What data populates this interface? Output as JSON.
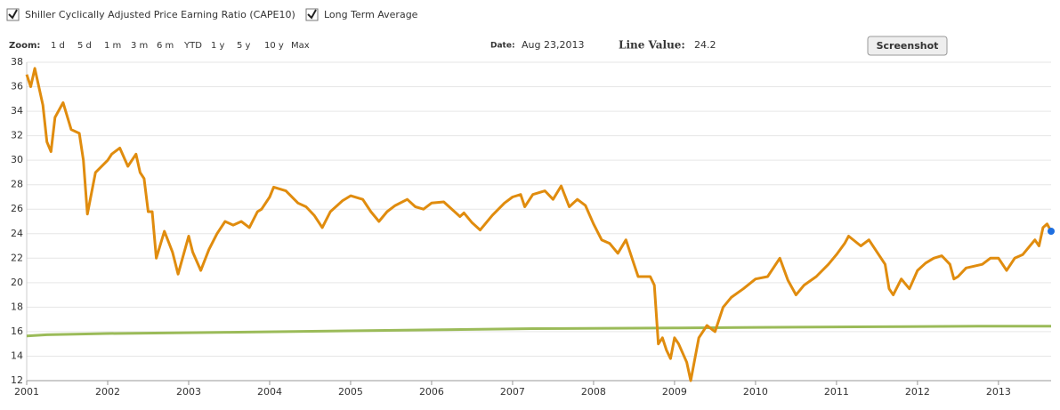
{
  "chart_data": {
    "type": "line",
    "zoom_label": "Zoom:",
    "zoom_options": [
      "1 d",
      "5 d",
      "1 m",
      "3 m",
      "6 m",
      "YTD",
      "1 y",
      "5 y",
      "10 y",
      "Max"
    ],
    "date_label": "Date:",
    "date": "Aug 23,2013",
    "line_value_label": "Line Value:",
    "line_value": 24.2,
    "screenshot_button": "Screenshot",
    "xlim": [
      2001,
      2013.65
    ],
    "xticks": [
      2001,
      2002,
      2003,
      2004,
      2005,
      2006,
      2007,
      2008,
      2009,
      2010,
      2011,
      2012,
      2013
    ],
    "ylim": [
      12,
      38
    ],
    "yticks": [
      12,
      14,
      16,
      18,
      20,
      22,
      24,
      26,
      28,
      30,
      32,
      34,
      36,
      38
    ],
    "grid": true,
    "series": [
      {
        "name": "Shiller Cyclically Adjusted Price Earning Ratio (CAPE10)",
        "color": "#e08c0e",
        "x": [
          2001.0,
          2001.05,
          2001.1,
          2001.2,
          2001.25,
          2001.3,
          2001.35,
          2001.45,
          2001.55,
          2001.65,
          2001.7,
          2001.75,
          2001.85,
          2002.0,
          2002.05,
          2002.15,
          2002.25,
          2002.35,
          2002.4,
          2002.45,
          2002.5,
          2002.55,
          2002.6,
          2002.7,
          2002.8,
          2002.87,
          2003.0,
          2003.05,
          2003.15,
          2003.25,
          2003.35,
          2003.45,
          2003.55,
          2003.65,
          2003.75,
          2003.85,
          2003.9,
          2004.0,
          2004.05,
          2004.2,
          2004.35,
          2004.45,
          2004.55,
          2004.65,
          2004.75,
          2004.9,
          2005.0,
          2005.15,
          2005.25,
          2005.35,
          2005.45,
          2005.55,
          2005.7,
          2005.8,
          2005.9,
          2006.0,
          2006.15,
          2006.35,
          2006.4,
          2006.5,
          2006.6,
          2006.75,
          2006.9,
          2007.0,
          2007.1,
          2007.15,
          2007.25,
          2007.4,
          2007.5,
          2007.6,
          2007.7,
          2007.8,
          2007.9,
          2008.0,
          2008.1,
          2008.2,
          2008.3,
          2008.4,
          2008.5,
          2008.55,
          2008.7,
          2008.75,
          2008.8,
          2008.85,
          2008.9,
          2008.95,
          2009.0,
          2009.05,
          2009.15,
          2009.2,
          2009.3,
          2009.4,
          2009.5,
          2009.6,
          2009.7,
          2009.85,
          2010.0,
          2010.15,
          2010.3,
          2010.4,
          2010.5,
          2010.6,
          2010.75,
          2010.9,
          2011.0,
          2011.1,
          2011.15,
          2011.3,
          2011.4,
          2011.5,
          2011.6,
          2011.65,
          2011.7,
          2011.8,
          2011.9,
          2012.0,
          2012.1,
          2012.2,
          2012.3,
          2012.4,
          2012.45,
          2012.5,
          2012.6,
          2012.8,
          2012.9,
          2013.0,
          2013.1,
          2013.2,
          2013.3,
          2013.45,
          2013.5,
          2013.55,
          2013.6,
          2013.65
        ],
        "values": [
          37,
          36,
          37.5,
          34.5,
          31.5,
          30.7,
          33.5,
          34.7,
          32.5,
          32.2,
          30,
          25.6,
          29,
          30,
          30.5,
          31,
          29.5,
          30.5,
          29,
          28.5,
          25.8,
          25.8,
          22,
          24.2,
          22.5,
          20.7,
          23.8,
          22.5,
          21,
          22.7,
          24,
          25,
          24.7,
          25,
          24.5,
          25.8,
          26,
          27,
          27.8,
          27.5,
          26.5,
          26.2,
          25.5,
          24.5,
          25.8,
          26.7,
          27.1,
          26.8,
          25.8,
          25,
          25.8,
          26.3,
          26.8,
          26.2,
          26,
          26.5,
          26.6,
          25.4,
          25.7,
          24.9,
          24.3,
          25.5,
          26.5,
          27,
          27.2,
          26.2,
          27.2,
          27.5,
          26.8,
          27.9,
          26.2,
          26.8,
          26.3,
          24.8,
          23.5,
          23.2,
          22.4,
          23.5,
          21.5,
          20.5,
          20.5,
          19.8,
          15,
          15.5,
          14.5,
          13.8,
          15.5,
          15,
          13.5,
          12,
          15.5,
          16.5,
          16,
          18,
          18.8,
          19.5,
          20.3,
          20.5,
          22,
          20.2,
          19,
          19.8,
          20.5,
          21.5,
          22.3,
          23.2,
          23.8,
          23,
          23.5,
          22.5,
          21.5,
          19.5,
          19,
          20.3,
          19.5,
          21,
          21.6,
          22,
          22.2,
          21.5,
          20.3,
          20.5,
          21.2,
          21.5,
          22,
          22,
          21,
          22,
          22.3,
          23.5,
          23,
          24.5,
          24.8,
          24.2
        ]
      },
      {
        "name": "Long Term Average",
        "color": "#9bbb59",
        "x": [
          2001.0,
          2001.25,
          2002.0,
          2003.5,
          2004.75,
          2006.0,
          2007.25,
          2009.0,
          2010.0,
          2011.5,
          2012.75,
          2013.65
        ],
        "values": [
          15.65,
          15.75,
          15.85,
          15.95,
          16.05,
          16.15,
          16.25,
          16.3,
          16.35,
          16.4,
          16.45,
          16.45
        ]
      }
    ]
  }
}
